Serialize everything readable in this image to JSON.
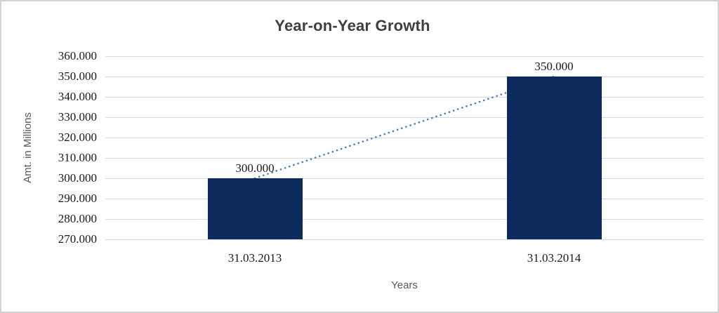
{
  "chart_data": {
    "type": "bar",
    "title": "Year-on-Year Growth",
    "xlabel": "Years",
    "ylabel": "Amt. in Millions",
    "categories": [
      "31.03.2013",
      "31.03.2014"
    ],
    "values": [
      300000,
      350000
    ],
    "data_labels": [
      "300.000",
      "350.000"
    ],
    "y_ticks": [
      "360.000",
      "350.000",
      "340.000",
      "330.000",
      "320.000",
      "310.000",
      "300.000",
      "290.000",
      "280.000",
      "270.000"
    ],
    "ylim": [
      270000,
      360000
    ],
    "grid": "horizontal",
    "legend": "none",
    "trendline": {
      "style": "dotted",
      "from_value": 300000,
      "to_value": 350000,
      "color": "#4a7ebb"
    },
    "colors": {
      "bar": "#0c2a5c",
      "gridline": "#d9d9d9",
      "border": "#d3d3d3",
      "title": "#3f3f3f",
      "axis_title": "#595959",
      "tick_label": "#1a1a1a",
      "background": "#ffffff"
    }
  }
}
